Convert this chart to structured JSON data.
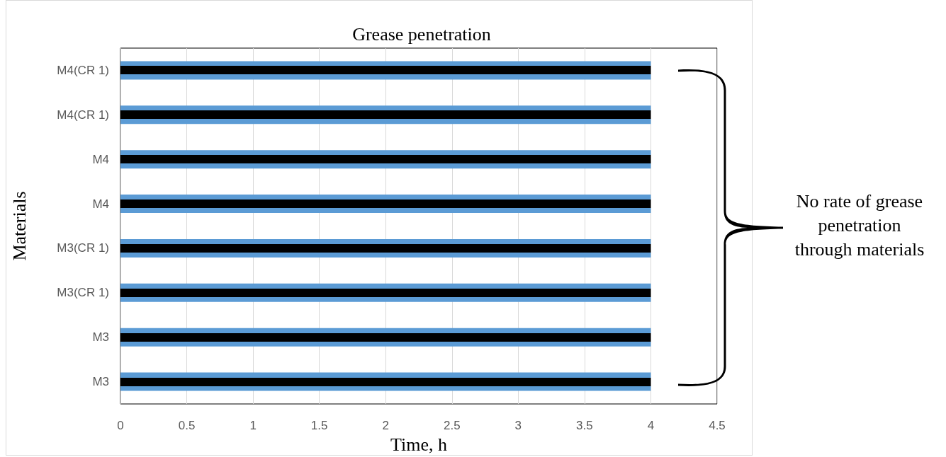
{
  "chart_data": {
    "type": "bar",
    "orientation": "horizontal",
    "title": "Grease penetration",
    "xlabel": "Time, h",
    "ylabel": "Materials",
    "categories": [
      "M4(CR 1)",
      "M4(CR 1)",
      "M4",
      "M4",
      "M3(CR 1)",
      "M3(CR 1)",
      "M3",
      "M3"
    ],
    "series": [
      {
        "color": "#5b9bd5",
        "values": [
          4,
          4,
          4,
          4,
          4,
          4,
          4,
          4
        ]
      }
    ],
    "xlim": [
      0,
      4.5
    ],
    "xticks": [
      0,
      0.5,
      1,
      1.5,
      2,
      2.5,
      3,
      3.5,
      4,
      4.5
    ],
    "grid": "x",
    "annotations": [
      "No rate of grease penetration through materials"
    ]
  }
}
